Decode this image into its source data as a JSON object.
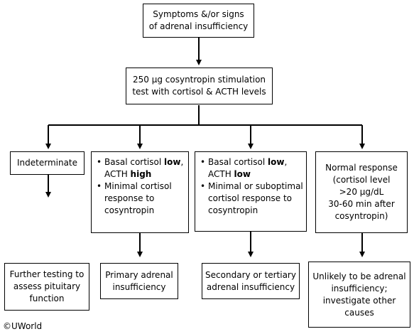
{
  "diagram": {
    "top": [
      "Symptoms &/or signs",
      "of adrenal insufficiency"
    ],
    "test": [
      "250 µg cosyntropin stimulation",
      "test with cortisol & ACTH levels"
    ],
    "branches": [
      {
        "title": "Indeterminate",
        "outcome": [
          "Further testing to",
          "assess pituitary",
          "function"
        ]
      },
      {
        "bullet1": {
          "pre": "Basal cortisol ",
          "bold": "low",
          "post": ",",
          "line2_pre": "ACTH ",
          "line2_bold": "high"
        },
        "bullet2": [
          "Minimal cortisol",
          "response  to",
          "cosyntropin"
        ],
        "outcome": [
          "Primary adrenal",
          "insufficiency"
        ]
      },
      {
        "bullet1": {
          "pre": "Basal cortisol ",
          "bold": "low",
          "post": ",",
          "line2_pre": "ACTH ",
          "line2_bold": "low"
        },
        "bullet2": [
          "Minimal or suboptimal",
          "cortisol response to",
          "cosyntropin"
        ],
        "outcome": [
          "Secondary or tertiary",
          "adrenal insufficiency"
        ]
      },
      {
        "title": [
          "Normal response",
          "(cortisol level",
          ">20 µg/dL",
          "30-60 min after",
          "cosyntropin)"
        ],
        "outcome": [
          "Unlikely to be adrenal",
          "insufficiency;",
          "investigate other",
          "causes"
        ]
      }
    ]
  },
  "credit": "©UWorld"
}
